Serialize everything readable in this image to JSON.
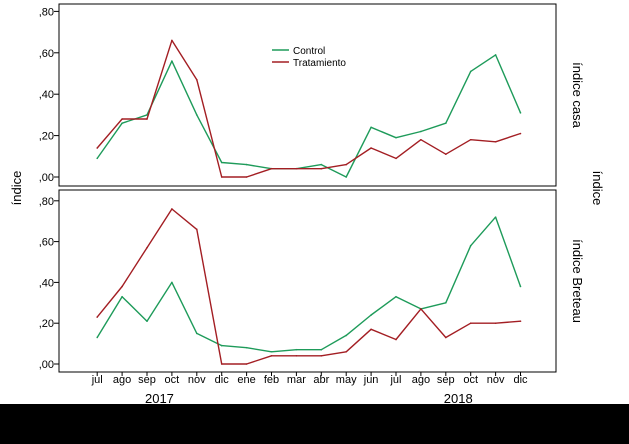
{
  "chart_data": {
    "type": "line",
    "categories": [
      "jul",
      "ago",
      "sep",
      "oct",
      "nov",
      "dic",
      "ene",
      "feb",
      "mar",
      "abr",
      "may",
      "jun",
      "jul",
      "ago",
      "sep",
      "oct",
      "nov",
      "dic"
    ],
    "year_labels": [
      "2017",
      "2018"
    ],
    "ylabel": "índice",
    "ylabel_right": "índice",
    "yticks": [
      ",00",
      ",20",
      ",40",
      ",60",
      ",80"
    ],
    "ylim": [
      0,
      0.85
    ],
    "grid": false,
    "legend_placement": "top-center (upper panel)",
    "colors": {
      "Control": "#1e9b5a",
      "Tratamiento": "#a31e23"
    },
    "panels": [
      {
        "title": "índice casa",
        "series": [
          {
            "name": "Control",
            "values": [
              0.09,
              0.26,
              0.3,
              0.56,
              0.3,
              0.07,
              0.06,
              0.04,
              0.04,
              0.06,
              0.0,
              0.24,
              0.19,
              0.22,
              0.26,
              0.51,
              0.59,
              0.31
            ]
          },
          {
            "name": "Tratamiento",
            "values": [
              0.14,
              0.28,
              0.28,
              0.66,
              0.47,
              0.0,
              0.0,
              0.04,
              0.04,
              0.04,
              0.06,
              0.14,
              0.09,
              0.18,
              0.11,
              0.18,
              0.17,
              0.21
            ]
          }
        ]
      },
      {
        "title": "índice Breteau",
        "series": [
          {
            "name": "Control",
            "values": [
              0.13,
              0.33,
              0.21,
              0.4,
              0.15,
              0.09,
              0.08,
              0.06,
              0.07,
              0.07,
              0.14,
              0.24,
              0.33,
              0.27,
              0.3,
              0.58,
              0.72,
              0.38
            ]
          },
          {
            "name": "Tratamiento",
            "values": [
              0.23,
              0.38,
              0.57,
              0.76,
              0.66,
              0.0,
              0.0,
              0.04,
              0.04,
              0.04,
              0.06,
              0.17,
              0.12,
              0.27,
              0.13,
              0.2,
              0.2,
              0.21
            ]
          }
        ]
      }
    ]
  }
}
